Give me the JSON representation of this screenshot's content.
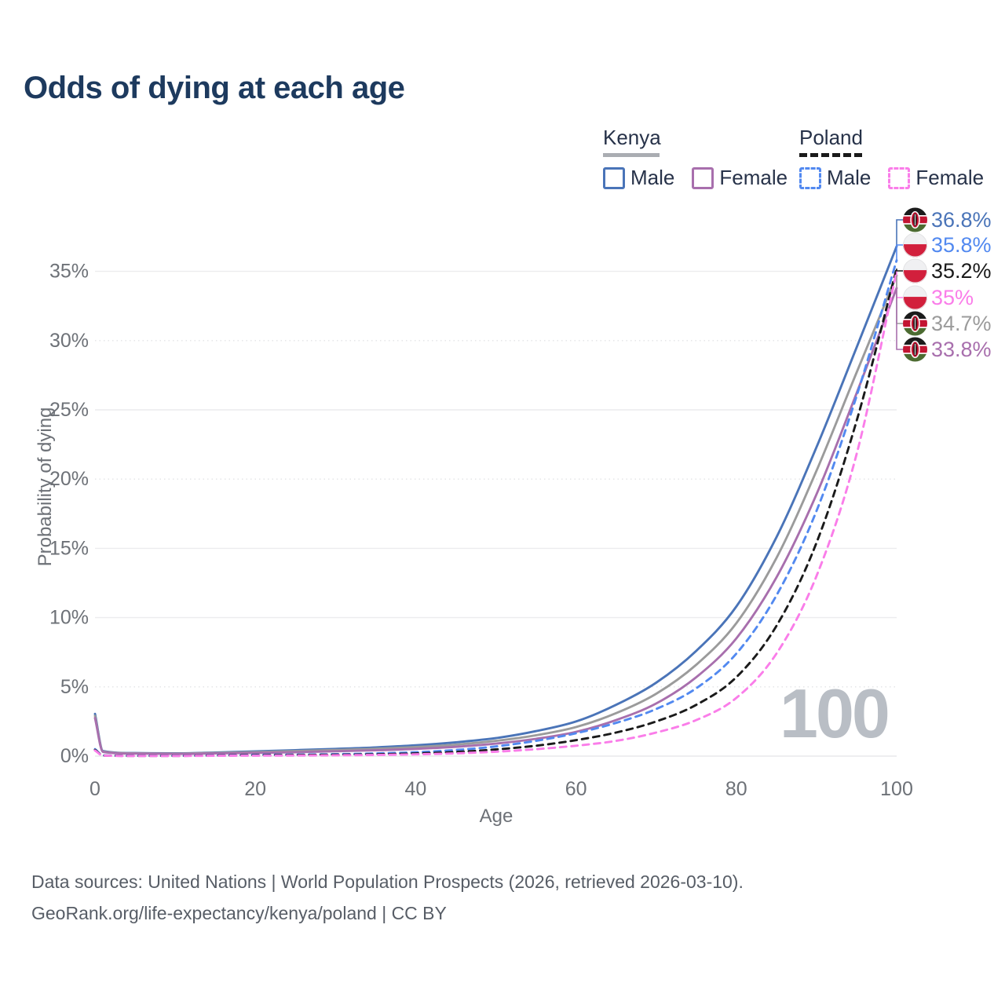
{
  "title": "Odds of dying at each age",
  "watermark": "100",
  "legend": {
    "groups": [
      {
        "label": "Kenya",
        "line_style": "solid",
        "items": [
          {
            "label": "Male"
          },
          {
            "label": "Female"
          }
        ]
      },
      {
        "label": "Poland",
        "line_style": "dashed",
        "items": [
          {
            "label": "Male"
          },
          {
            "label": "Female"
          }
        ]
      }
    ]
  },
  "footer": {
    "line1": "Data sources: United Nations | World Population Prospects (2026, retrieved 2026-03-10).",
    "line2": "GeoRank.org/life-expectancy/kenya/poland | CC BY"
  },
  "colors": {
    "kenya_male": "#4a74b8",
    "kenya_all": "#9b9b9b",
    "kenya_female": "#a86fad",
    "poland_male": "#5289f0",
    "poland_all": "#1a1a1a",
    "poland_female": "#fa7de9",
    "title": "#1d3a5e",
    "legend_text": "#273249",
    "axis": "#6d7177",
    "grid": "#ececee",
    "grid_dotted": "#e3e4e6",
    "footer": "#575d66",
    "watermark": "#b9bec5",
    "kenya_underline": "#aaadb2",
    "poland_underline": "#1a1a1a"
  },
  "chart_data": {
    "type": "line",
    "title": "Odds of dying at each age",
    "xlabel": "Age",
    "ylabel": "Probability of dying",
    "x_ticks": [
      "0",
      "20",
      "40",
      "60",
      "80",
      "100"
    ],
    "x_tick_values": [
      0,
      20,
      40,
      60,
      80,
      100
    ],
    "y_ticks": [
      "0%",
      "5%",
      "10%",
      "15%",
      "20%",
      "25%",
      "30%",
      "35%"
    ],
    "y_tick_values": [
      0,
      5,
      10,
      15,
      20,
      25,
      30,
      35
    ],
    "y_dotted_gridlines": [
      5,
      20,
      30
    ],
    "xlim": [
      0,
      100
    ],
    "ylim": [
      0,
      38.5
    ],
    "legend_position": "top-right",
    "x": [
      0,
      1,
      5,
      10,
      15,
      20,
      25,
      30,
      35,
      40,
      45,
      50,
      55,
      60,
      65,
      70,
      75,
      80,
      85,
      90,
      95,
      100
    ],
    "series": [
      {
        "name": "Kenya Male",
        "color": "kenya_male",
        "dashed": false,
        "values": [
          3.05,
          0.36,
          0.22,
          0.2,
          0.26,
          0.34,
          0.43,
          0.52,
          0.63,
          0.78,
          1.0,
          1.3,
          1.8,
          2.5,
          3.7,
          5.3,
          7.6,
          10.8,
          15.8,
          22.3,
          29.5,
          36.8
        ]
      },
      {
        "name": "Kenya",
        "color": "kenya_all",
        "dashed": false,
        "values": [
          2.9,
          0.33,
          0.2,
          0.18,
          0.23,
          0.29,
          0.36,
          0.44,
          0.53,
          0.65,
          0.83,
          1.1,
          1.5,
          2.1,
          3.1,
          4.5,
          6.6,
          9.6,
          14.3,
          20.6,
          27.7,
          34.7
        ]
      },
      {
        "name": "Kenya Female",
        "color": "kenya_female",
        "dashed": false,
        "values": [
          2.75,
          0.3,
          0.18,
          0.16,
          0.19,
          0.23,
          0.28,
          0.35,
          0.42,
          0.52,
          0.67,
          0.9,
          1.25,
          1.75,
          2.6,
          3.8,
          5.7,
          8.5,
          12.9,
          18.9,
          26.2,
          33.8
        ]
      },
      {
        "name": "Poland Male",
        "color": "poland_male",
        "dashed": true,
        "values": [
          0.5,
          0.05,
          0.02,
          0.02,
          0.05,
          0.09,
          0.11,
          0.14,
          0.19,
          0.28,
          0.44,
          0.7,
          1.1,
          1.65,
          2.4,
          3.4,
          4.9,
          7.4,
          11.6,
          17.7,
          26.0,
          35.8
        ]
      },
      {
        "name": "Poland",
        "color": "poland_all",
        "dashed": true,
        "values": [
          0.45,
          0.045,
          0.015,
          0.015,
          0.04,
          0.065,
          0.08,
          0.1,
          0.13,
          0.19,
          0.3,
          0.48,
          0.75,
          1.15,
          1.7,
          2.5,
          3.7,
          5.7,
          9.4,
          15.4,
          24.2,
          35.2
        ]
      },
      {
        "name": "Poland Female",
        "color": "poland_female",
        "dashed": true,
        "values": [
          0.4,
          0.04,
          0.012,
          0.012,
          0.025,
          0.035,
          0.045,
          0.06,
          0.085,
          0.13,
          0.2,
          0.32,
          0.5,
          0.75,
          1.1,
          1.7,
          2.6,
          4.2,
          7.4,
          13.0,
          21.8,
          35.0
        ]
      }
    ],
    "end_labels": [
      {
        "flag": "kenya",
        "text": "36.8%",
        "color": "kenya_male",
        "series": "Kenya Male"
      },
      {
        "flag": "poland",
        "text": "35.8%",
        "color": "poland_male",
        "series": "Poland Male"
      },
      {
        "flag": "poland",
        "text": "35.2%",
        "color": "poland_all",
        "series": "Poland"
      },
      {
        "flag": "poland",
        "text": "35%",
        "color": "poland_female",
        "series": "Poland Female"
      },
      {
        "flag": "kenya",
        "text": "34.7%",
        "color": "kenya_all",
        "series": "Kenya"
      },
      {
        "flag": "kenya",
        "text": "33.8%",
        "color": "kenya_female",
        "series": "Kenya Female"
      }
    ]
  }
}
